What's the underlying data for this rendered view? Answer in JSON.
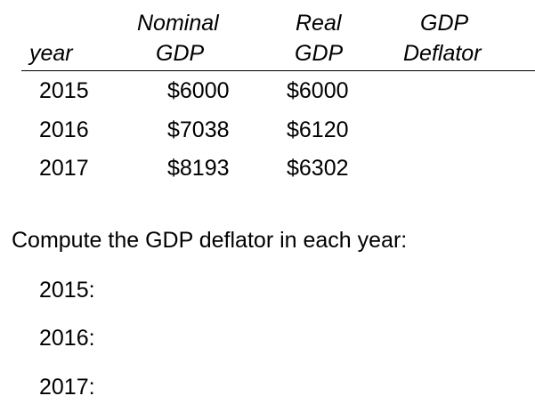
{
  "table": {
    "headers": {
      "year": "year",
      "nominal_line1": "Nominal",
      "nominal_line2": "GDP",
      "real_line1": "Real",
      "real_line2": "GDP",
      "deflator_line1": "GDP",
      "deflator_line2": "Deflator"
    },
    "rows": [
      {
        "year": "2015",
        "nominal": "$6000",
        "real": "$6000",
        "deflator": ""
      },
      {
        "year": "2016",
        "nominal": "$7038",
        "real": "$6120",
        "deflator": ""
      },
      {
        "year": "2017",
        "nominal": "$8193",
        "real": "$6302",
        "deflator": ""
      }
    ]
  },
  "question": {
    "prompt": "Compute the GDP deflator in each year:",
    "answers": [
      {
        "label": "2015:"
      },
      {
        "label": "2016:"
      },
      {
        "label": "2017:"
      }
    ]
  }
}
